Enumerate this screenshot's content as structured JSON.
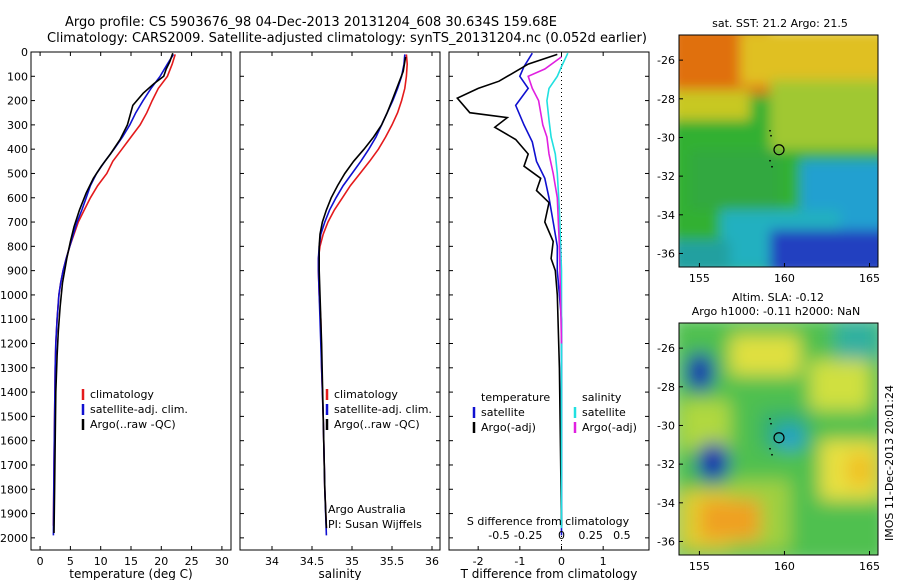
{
  "header": {
    "line1": "Argo profile: CS 5903676_98 04-Dec-2013 20131204_608 30.634S 159.68E",
    "line2": "Climatology: CARS2009. Satellite-adjusted climatology: synTS_20131204.nc (0.052d earlier)"
  },
  "side_text": "IMOS 11-Dec-2013 20:01:24",
  "colors": {
    "red": "#e41a1c",
    "blue": "#1010d0",
    "black": "#000000",
    "cyan": "#20e0e0",
    "magenta": "#e020e0"
  },
  "chart_data": [
    {
      "type": "line",
      "name": "temperature",
      "xlabel": "temperature (deg C)",
      "ylim": [
        2050,
        0
      ],
      "xlim": [
        -1.5,
        31.5
      ],
      "xticks": [
        0,
        5,
        10,
        15,
        20,
        25,
        30
      ],
      "yticks": [
        0,
        100,
        200,
        300,
        400,
        500,
        600,
        700,
        800,
        900,
        1000,
        1100,
        1200,
        1300,
        1400,
        1500,
        1600,
        1700,
        1800,
        1900,
        2000
      ],
      "legend": [
        "climatology",
        "satellite-adj. clim.",
        "Argo(..raw -QC)"
      ],
      "legend_colors": [
        "red",
        "blue",
        "black"
      ],
      "series": [
        {
          "name": "climatology",
          "color": "red",
          "x": [
            22.3,
            21.8,
            21.0,
            19.5,
            18.5,
            17.6,
            16.5,
            15.0,
            13.5,
            12.0,
            11.0,
            9.5,
            8.3,
            7.3,
            6.3,
            5.6,
            4.9,
            4.3,
            3.8,
            3.4,
            3.1,
            2.8,
            2.6,
            2.5,
            2.4,
            2.3,
            2.2
          ],
          "y": [
            10,
            50,
            100,
            150,
            200,
            250,
            300,
            350,
            400,
            450,
            500,
            550,
            600,
            650,
            700,
            750,
            800,
            850,
            900,
            950,
            1000,
            1100,
            1200,
            1300,
            1500,
            1700,
            1950
          ]
        },
        {
          "name": "satellite-adj. clim.",
          "color": "blue",
          "x": [
            22.0,
            21.0,
            19.8,
            18.3,
            17.0,
            15.8,
            14.8,
            13.6,
            12.2,
            10.7,
            9.3,
            8.3,
            7.6,
            6.9,
            6.1,
            5.5,
            4.9,
            4.3,
            3.8,
            3.4,
            3.1,
            2.8,
            2.6,
            2.5,
            2.4,
            2.3,
            2.2
          ],
          "y": [
            10,
            50,
            100,
            150,
            200,
            250,
            300,
            350,
            400,
            450,
            500,
            550,
            600,
            650,
            700,
            750,
            800,
            850,
            900,
            950,
            1000,
            1100,
            1200,
            1300,
            1500,
            1700,
            1990
          ]
        },
        {
          "name": "Argo(..raw -QC)",
          "color": "black",
          "x": [
            21.9,
            21.4,
            20.8,
            20.4,
            18.8,
            17.0,
            15.3,
            14.4,
            13.2,
            11.6,
            10.1,
            8.8,
            7.6,
            6.5,
            5.6,
            5.0,
            4.4,
            3.7,
            3.3,
            3.0,
            2.8,
            2.6,
            2.5,
            2.4,
            2.3
          ],
          "y": [
            5,
            40,
            70,
            100,
            130,
            170,
            220,
            300,
            360,
            420,
            470,
            520,
            580,
            650,
            720,
            780,
            850,
            950,
            1050,
            1150,
            1250,
            1400,
            1600,
            1800,
            1980
          ]
        }
      ]
    },
    {
      "type": "line",
      "name": "salinity",
      "xlabel": "salinity",
      "ylim": [
        2050,
        0
      ],
      "xlim": [
        33.6,
        36.1
      ],
      "xticks": [
        34,
        34.5,
        35,
        35.5,
        36
      ],
      "legend": [
        "climatology",
        "satellite-adj. clim.",
        "Argo(..raw -QC)"
      ],
      "legend_colors": [
        "red",
        "blue",
        "black"
      ],
      "annotation": [
        "Argo Australia",
        "PI: Susan Wijffels"
      ],
      "series": [
        {
          "name": "climatology",
          "color": "red",
          "x": [
            35.68,
            35.69,
            35.68,
            35.66,
            35.62,
            35.57,
            35.5,
            35.42,
            35.33,
            35.22,
            35.1,
            34.98,
            34.88,
            34.78,
            34.7,
            34.64,
            34.6,
            34.58,
            34.58,
            34.59,
            34.61,
            34.62,
            34.64,
            34.66,
            34.68
          ],
          "y": [
            10,
            50,
            100,
            150,
            200,
            250,
            300,
            350,
            400,
            450,
            500,
            550,
            600,
            650,
            700,
            750,
            800,
            850,
            900,
            1000,
            1100,
            1300,
            1500,
            1800,
            1960
          ]
        },
        {
          "name": "satellite-adj. clim.",
          "color": "blue",
          "x": [
            35.66,
            35.65,
            35.62,
            35.57,
            35.51,
            35.44,
            35.37,
            35.3,
            35.21,
            35.11,
            35.0,
            34.89,
            34.8,
            34.72,
            34.66,
            34.61,
            34.59,
            34.58,
            34.58,
            34.59,
            34.6,
            34.62,
            34.64,
            34.66,
            34.68
          ],
          "y": [
            10,
            50,
            100,
            150,
            200,
            250,
            300,
            350,
            400,
            450,
            500,
            550,
            600,
            650,
            700,
            750,
            800,
            850,
            900,
            1000,
            1100,
            1300,
            1500,
            1800,
            1990
          ]
        },
        {
          "name": "Argo(..raw -QC)",
          "color": "black",
          "x": [
            35.67,
            35.64,
            35.57,
            35.5,
            35.44,
            35.37,
            35.27,
            35.15,
            35.02,
            34.91,
            34.82,
            34.74,
            34.68,
            34.63,
            34.6,
            34.59,
            34.59,
            34.6,
            34.62,
            34.64,
            34.66,
            34.68
          ],
          "y": [
            20,
            80,
            140,
            200,
            250,
            300,
            350,
            400,
            450,
            500,
            550,
            600,
            650,
            700,
            750,
            800,
            900,
            1000,
            1200,
            1500,
            1800,
            1960
          ]
        }
      ]
    },
    {
      "type": "line",
      "name": "differences",
      "xlabel": "T difference from climatology",
      "xlabel_top": "S difference from climatology",
      "ylim": [
        2050,
        0
      ],
      "xlim": [
        -2.7,
        2.1
      ],
      "xticks": [
        -2,
        -1,
        0,
        1
      ],
      "s_ticks": [
        -0.5,
        -0.25,
        0,
        0.25,
        0.5
      ],
      "s_tick_pos": [
        -1.5,
        -0.8,
        0,
        0.7,
        1.45
      ],
      "legend_left_title": "temperature",
      "legend_left": [
        "satellite",
        "Argo(-adj)"
      ],
      "legend_left_colors": [
        "blue",
        "black"
      ],
      "legend_right_title": "salinity",
      "legend_right": [
        "satellite",
        "Argo(-adj)"
      ],
      "legend_right_colors": [
        "cyan",
        "magenta"
      ],
      "series": [
        {
          "name": "T satellite",
          "color": "blue",
          "x": [
            -0.7,
            -0.9,
            -1.0,
            -0.8,
            -1.1,
            -0.9,
            -0.7,
            -0.6,
            -0.4,
            -0.3,
            -0.2,
            -0.1,
            -0.1,
            0.0,
            0.0
          ],
          "y": [
            5,
            60,
            100,
            150,
            220,
            300,
            370,
            450,
            520,
            600,
            700,
            800,
            900,
            1100,
            1990
          ]
        },
        {
          "name": "T Argo(-adj)",
          "color": "black",
          "x": [
            -0.1,
            -0.8,
            -1.2,
            -1.5,
            -2.0,
            -2.5,
            -2.2,
            -1.3,
            -1.6,
            -1.1,
            -0.8,
            -0.9,
            -0.5,
            -0.6,
            -0.3,
            -0.4,
            -0.2,
            -0.25,
            -0.15,
            -0.1,
            -0.05,
            0.0
          ],
          "y": [
            10,
            50,
            90,
            120,
            150,
            190,
            250,
            270,
            310,
            360,
            420,
            470,
            520,
            570,
            620,
            700,
            780,
            850,
            900,
            1000,
            1300,
            1950
          ]
        },
        {
          "name": "S satellite",
          "color": "cyan",
          "x": [
            0.15,
            0.0,
            -0.1,
            -0.3,
            -0.35,
            -0.3,
            -0.25,
            -0.15,
            -0.1,
            -0.05,
            0.0,
            0.0
          ],
          "y": [
            5,
            60,
            100,
            150,
            200,
            280,
            350,
            420,
            500,
            650,
            900,
            1960
          ]
        },
        {
          "name": "S Argo(-adj)",
          "color": "magenta",
          "x": [
            0.0,
            -0.4,
            -0.8,
            -0.7,
            -0.55,
            -0.5,
            -0.45,
            -0.35,
            -0.3,
            -0.2,
            -0.1,
            -0.05,
            0.0
          ],
          "y": [
            20,
            70,
            100,
            150,
            200,
            250,
            300,
            350,
            420,
            500,
            600,
            800,
            1200
          ]
        }
      ]
    },
    {
      "type": "heatmap",
      "name": "sst-map",
      "title": "sat. SST: 21.2  Argo: 21.5",
      "xticks": [
        155,
        160,
        165
      ],
      "yticks": [
        -26,
        -28,
        -30,
        -32,
        -34,
        -36
      ],
      "xlim": [
        153.8,
        165.5
      ],
      "ylim": [
        -36.7,
        -24.7
      ],
      "float": [
        159.68,
        -30.634
      ]
    },
    {
      "type": "heatmap",
      "name": "sla-map",
      "title_line1": "Altim. SLA: -0.12",
      "title_line2": "Argo h1000: -0.11  h2000: NaN",
      "xticks": [
        155,
        160,
        165
      ],
      "yticks": [
        -26,
        -28,
        -30,
        -32,
        -34,
        -36
      ],
      "xlim": [
        153.8,
        165.5
      ],
      "ylim": [
        -36.7,
        -24.7
      ],
      "float": [
        159.68,
        -30.634
      ]
    }
  ]
}
